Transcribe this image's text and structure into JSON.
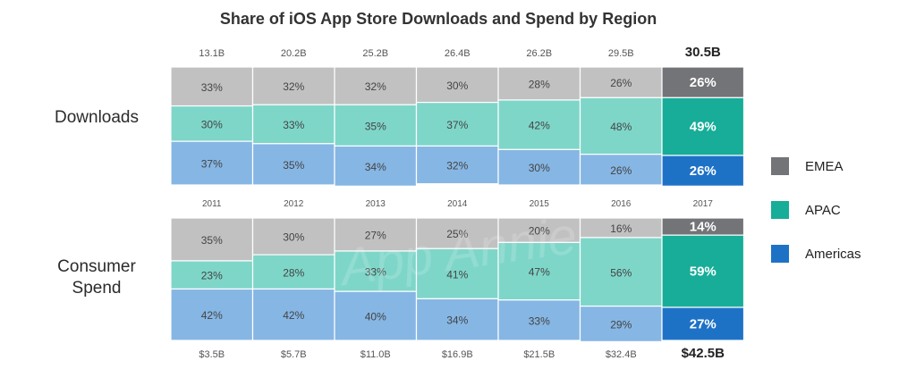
{
  "chart_data": {
    "type": "bar",
    "title": "Share of iOS App Store Downloads and Spend by Region",
    "years": [
      "2011",
      "2012",
      "2013",
      "2014",
      "2015",
      "2016",
      "2017"
    ],
    "legend_position": "right",
    "legend": [
      {
        "name": "EMEA",
        "color": "#727477"
      },
      {
        "name": "APAC",
        "color": "#17ad98"
      },
      {
        "name": "Americas",
        "color": "#1e72c6"
      }
    ],
    "panels": [
      {
        "label": "Downloads",
        "totals": [
          "13.1B",
          "20.2B",
          "25.2B",
          "26.4B",
          "26.2B",
          "29.5B",
          "30.5B"
        ],
        "series": [
          {
            "name": "EMEA",
            "values": [
              33,
              32,
              32,
              30,
              28,
              26,
              26
            ]
          },
          {
            "name": "APAC",
            "values": [
              30,
              33,
              35,
              37,
              42,
              48,
              49
            ]
          },
          {
            "name": "Americas",
            "values": [
              37,
              35,
              34,
              32,
              30,
              26,
              26
            ]
          }
        ]
      },
      {
        "label": "Consumer Spend",
        "totals": [
          "$3.5B",
          "$5.7B",
          "$11.0B",
          "$16.9B",
          "$21.5B",
          "$32.4B",
          "$42.5B"
        ],
        "series": [
          {
            "name": "EMEA",
            "values": [
              35,
              30,
              27,
              25,
              20,
              16,
              14
            ]
          },
          {
            "name": "APAC",
            "values": [
              23,
              28,
              33,
              41,
              47,
              56,
              59
            ]
          },
          {
            "name": "Americas",
            "values": [
              42,
              42,
              40,
              34,
              33,
              29,
              27
            ]
          }
        ]
      }
    ],
    "colors": {
      "muted": [
        "#c1c1c1",
        "#7ed6c9",
        "#86b6e4"
      ],
      "highlight": [
        "#727477",
        "#17ad98",
        "#1e72c6"
      ]
    },
    "value_suffix": "%"
  },
  "labels": {
    "downloads": "Downloads",
    "spend_line1": "Consumer",
    "spend_line2": "Spend",
    "watermark": "App Annie"
  }
}
